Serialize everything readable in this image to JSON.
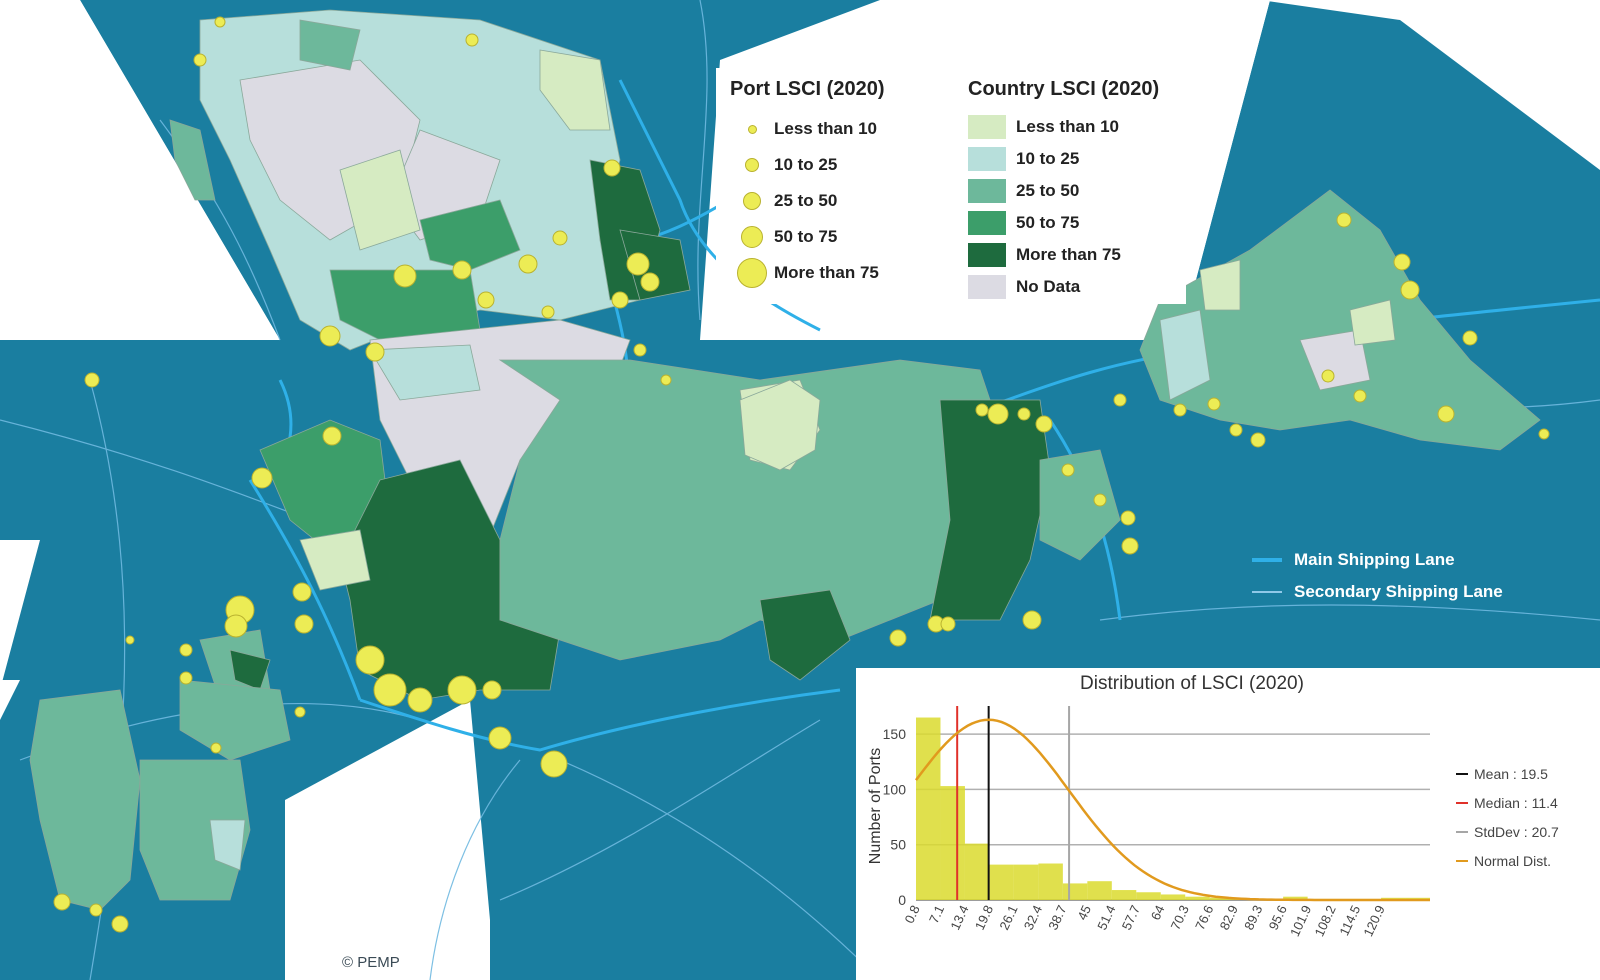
{
  "colors": {
    "ocean": "#1a7ea0",
    "main_lane": "#2fb0e8",
    "secondary_lane": "#6fb9e0",
    "port_fill": "#ecec55",
    "port_stroke": "#b9b22f",
    "country_lt10": "#d6ebc2",
    "country_10_25": "#b7dfdb",
    "country_25_50": "#6db89b",
    "country_50_75": "#3c9e6a",
    "country_gt75": "#1e6b3e",
    "country_nodata": "#dcdbe3",
    "hist_bar": "#dada2e",
    "mean_line": "#111111",
    "median_line": "#e0312a",
    "stddev_line": "#a6a6a6",
    "normal_curve": "#e19a1e"
  },
  "port_legend": {
    "title": "Port LSCI (2020)",
    "items": [
      {
        "label": "Less than 10",
        "icon": "port-dot-tiny-icon"
      },
      {
        "label": "10 to 25",
        "icon": "port-dot-small-icon"
      },
      {
        "label": "25 to 50",
        "icon": "port-dot-medium-icon"
      },
      {
        "label": "50 to 75",
        "icon": "port-dot-large-icon"
      },
      {
        "label": "More than 75",
        "icon": "port-dot-xlarge-icon"
      }
    ]
  },
  "country_legend": {
    "title": "Country LSCI (2020)",
    "items": [
      {
        "label": "Less than 10",
        "color": "#d6ebc2"
      },
      {
        "label": "10 to 25",
        "color": "#b7dfdb"
      },
      {
        "label": "25 to 50",
        "color": "#6db89b"
      },
      {
        "label": "50 to 75",
        "color": "#3c9e6a"
      },
      {
        "label": "More than 75",
        "color": "#1e6b3e"
      },
      {
        "label": "No Data",
        "color": "#dcdbe3"
      }
    ]
  },
  "lanes_legend": {
    "main": "Main Shipping Lane",
    "secondary": "Secondary Shipping Lane"
  },
  "copyright": "© PEMP",
  "chart_data": {
    "type": "bar",
    "title": "Distribution of LSCI (2020)",
    "xlabel": "",
    "ylabel": "Number of Ports",
    "ylim": [
      0,
      170
    ],
    "yticks": [
      0,
      50,
      100,
      150
    ],
    "x_ticks": [
      "0.8",
      "7.1",
      "13.4",
      "19.8",
      "26.1",
      "32.4",
      "38.7",
      "45",
      "51.4",
      "57.7",
      "64",
      "70.3",
      "76.6",
      "82.9",
      "89.3",
      "95.6",
      "101.9",
      "108.2",
      "114.5",
      "120.9"
    ],
    "bin_start": 0.8,
    "bin_width": 6.3,
    "values": [
      165,
      103,
      51,
      32,
      32,
      33,
      15,
      17,
      9,
      7,
      5,
      3,
      2,
      1,
      1,
      3,
      1,
      1,
      1,
      2,
      2
    ],
    "reference_lines": [
      {
        "name": "Mean",
        "label": "Mean : 19.5",
        "value": 19.5
      },
      {
        "name": "Median",
        "label": "Median : 11.4",
        "value": 11.4
      },
      {
        "name": "StdDev",
        "label": "StdDev : 20.7",
        "value": 40.2
      }
    ],
    "normal_label": "Normal Dist.",
    "normal_mean": 19.5,
    "normal_sd": 20.7,
    "normal_peak": 163,
    "grid": true,
    "legend_placement": "right"
  }
}
